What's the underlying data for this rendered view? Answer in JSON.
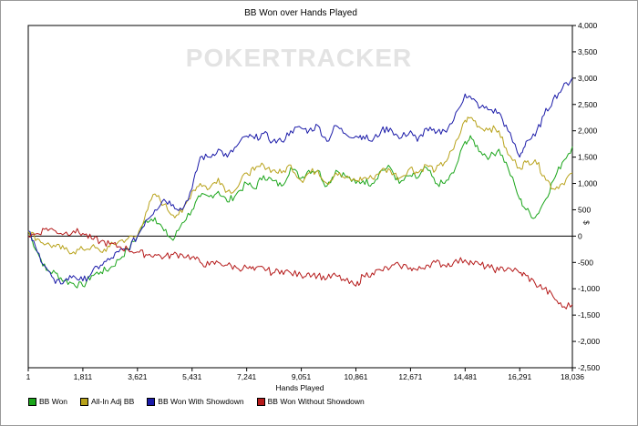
{
  "chart_data": {
    "type": "line",
    "title": "BB Won over Hands Played",
    "xlabel": "Hands Played",
    "ylabel": "$",
    "watermark": "POKERTRACKER",
    "xlim": [
      1,
      18036
    ],
    "ylim": [
      -2500,
      4000
    ],
    "xticks": [
      "1",
      "1,811",
      "3,621",
      "5,431",
      "7,241",
      "9,051",
      "10,861",
      "12,671",
      "14,481",
      "16,291",
      "18,036"
    ],
    "yticks": [
      "4,000",
      "3,500",
      "3,000",
      "2,500",
      "2,000",
      "1,500",
      "1,000",
      "500",
      "0",
      "-500",
      "-1,000",
      "-1,500",
      "-2,000",
      "-2,500"
    ],
    "ytick_values": [
      4000,
      3500,
      3000,
      2500,
      2000,
      1500,
      1000,
      500,
      0,
      -500,
      -1000,
      -1500,
      -2000,
      -2500
    ],
    "xtick_values": [
      1,
      1811,
      3621,
      5431,
      7241,
      9051,
      10861,
      12671,
      14481,
      16291,
      18036
    ],
    "grid": false,
    "legend_position": "bottom",
    "series": [
      {
        "name": "BB Won",
        "color": "#1aa51a",
        "x": [
          1,
          300,
          600,
          900,
          1200,
          1500,
          1811,
          2100,
          2400,
          2700,
          3000,
          3300,
          3621,
          3900,
          4200,
          4500,
          4800,
          5100,
          5431,
          5700,
          6000,
          6300,
          6600,
          6900,
          7241,
          7500,
          7800,
          8100,
          8400,
          8700,
          9051,
          9300,
          9600,
          9900,
          10200,
          10500,
          10861,
          11100,
          11400,
          11700,
          12000,
          12300,
          12671,
          12900,
          13200,
          13500,
          13800,
          14100,
          14481,
          14700,
          15000,
          15300,
          15600,
          15900,
          16291,
          16500,
          16800,
          17100,
          17400,
          17700,
          18036
        ],
        "y": [
          100,
          -300,
          -650,
          -700,
          -850,
          -900,
          -950,
          -750,
          -680,
          -620,
          -450,
          -250,
          0,
          300,
          350,
          100,
          -80,
          250,
          500,
          750,
          750,
          850,
          650,
          800,
          1000,
          900,
          1150,
          1050,
          950,
          1300,
          1100,
          1250,
          1250,
          950,
          1250,
          1150,
          1000,
          1050,
          1000,
          1250,
          1300,
          1000,
          1150,
          1100,
          1300,
          1000,
          1000,
          1200,
          1800,
          1850,
          1600,
          1500,
          1650,
          1300,
          700,
          500,
          350,
          650,
          1050,
          1400,
          1700
        ]
      },
      {
        "name": "All-In Adj BB",
        "color": "#b8a21a",
        "x": [
          1,
          300,
          600,
          900,
          1200,
          1500,
          1811,
          2100,
          2400,
          2700,
          3000,
          3300,
          3621,
          3900,
          4200,
          4500,
          4800,
          5100,
          5431,
          5700,
          6000,
          6300,
          6600,
          6900,
          7241,
          7500,
          7800,
          8100,
          8400,
          8700,
          9051,
          9300,
          9600,
          9900,
          10200,
          10500,
          10861,
          11100,
          11400,
          11700,
          12000,
          12300,
          12671,
          12900,
          13200,
          13500,
          13800,
          14100,
          14481,
          14700,
          15000,
          15300,
          15600,
          15900,
          16291,
          16500,
          16800,
          17100,
          17400,
          17700,
          18036
        ],
        "y": [
          100,
          -50,
          -150,
          -200,
          -250,
          -300,
          -250,
          -200,
          -300,
          -200,
          -100,
          -50,
          0,
          450,
          800,
          600,
          400,
          450,
          850,
          1000,
          900,
          1100,
          850,
          900,
          1200,
          1250,
          1350,
          1250,
          1200,
          1350,
          1050,
          1200,
          1250,
          1000,
          1200,
          1100,
          1050,
          1100,
          1100,
          1250,
          1250,
          1100,
          1300,
          1200,
          1350,
          1250,
          1400,
          1650,
          2200,
          2250,
          2050,
          2050,
          2000,
          1550,
          1300,
          1400,
          1450,
          1150,
          900,
          1000,
          1200
        ]
      },
      {
        "name": "BB Won With Showdown",
        "color": "#1a1aa8",
        "x": [
          1,
          300,
          600,
          900,
          1200,
          1500,
          1811,
          2100,
          2400,
          2700,
          3000,
          3300,
          3621,
          3900,
          4200,
          4500,
          4800,
          5100,
          5431,
          5700,
          6000,
          6300,
          6600,
          6900,
          7241,
          7500,
          7800,
          8100,
          8400,
          8700,
          9051,
          9300,
          9600,
          9900,
          10200,
          10500,
          10861,
          11100,
          11400,
          11700,
          12000,
          12300,
          12671,
          12900,
          13200,
          13500,
          13800,
          14100,
          14481,
          14700,
          15000,
          15300,
          15600,
          15900,
          16291,
          16500,
          16800,
          17100,
          17400,
          17700,
          18036
        ],
        "y": [
          100,
          -300,
          -600,
          -900,
          -850,
          -750,
          -850,
          -700,
          -550,
          -450,
          -300,
          -250,
          0,
          300,
          500,
          700,
          600,
          500,
          900,
          1500,
          1500,
          1650,
          1500,
          1700,
          1900,
          1850,
          1950,
          1800,
          1800,
          2000,
          2050,
          2000,
          2100,
          1800,
          2100,
          1950,
          1900,
          1900,
          1800,
          2000,
          2050,
          1850,
          2000,
          1800,
          2050,
          1950,
          2000,
          2200,
          2700,
          2600,
          2450,
          2400,
          2350,
          2000,
          1500,
          1800,
          1900,
          2300,
          2600,
          2800,
          3000
        ]
      },
      {
        "name": "BB Won Without Showdown",
        "color": "#b51a1a",
        "x": [
          1,
          300,
          600,
          900,
          1200,
          1500,
          1811,
          2100,
          2400,
          2700,
          3000,
          3300,
          3621,
          3900,
          4200,
          4500,
          4800,
          5100,
          5431,
          5700,
          6000,
          6300,
          6600,
          6900,
          7241,
          7500,
          7800,
          8100,
          8400,
          8700,
          9051,
          9300,
          9600,
          9900,
          10200,
          10500,
          10861,
          11100,
          11400,
          11700,
          12000,
          12300,
          12671,
          12900,
          13200,
          13500,
          13800,
          14100,
          14481,
          14700,
          15000,
          15300,
          15600,
          15900,
          16291,
          16500,
          16800,
          17100,
          17400,
          17700,
          18036
        ],
        "y": [
          0,
          50,
          150,
          100,
          50,
          100,
          50,
          -50,
          -100,
          -150,
          -200,
          -250,
          -300,
          -350,
          -350,
          -400,
          -350,
          -350,
          -400,
          -500,
          -550,
          -500,
          -550,
          -600,
          -600,
          -650,
          -600,
          -700,
          -650,
          -700,
          -750,
          -700,
          -750,
          -800,
          -750,
          -850,
          -950,
          -750,
          -700,
          -650,
          -600,
          -550,
          -600,
          -650,
          -550,
          -500,
          -550,
          -500,
          -450,
          -500,
          -550,
          -600,
          -650,
          -600,
          -700,
          -750,
          -900,
          -1000,
          -1150,
          -1350,
          -1300
        ]
      }
    ]
  }
}
